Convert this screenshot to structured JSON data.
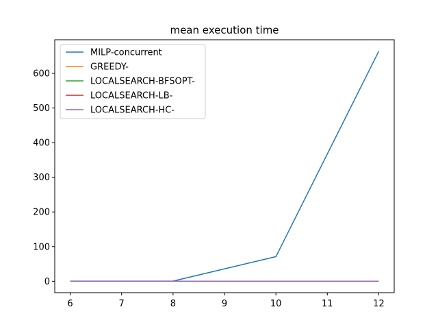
{
  "chart_data": {
    "type": "line",
    "title": "mean execution time",
    "xlabel": "",
    "ylabel": "",
    "x": [
      6,
      8,
      10,
      12
    ],
    "xticks": [
      "6",
      "7",
      "8",
      "9",
      "10",
      "11",
      "12"
    ],
    "yticks": [
      "0",
      "100",
      "200",
      "300",
      "400",
      "500",
      "600"
    ],
    "xlim": [
      5.7,
      12.3
    ],
    "ylim": [
      -33,
      697
    ],
    "grid": false,
    "legend_position": "top-left",
    "series": [
      {
        "name": "MILP-concurrent",
        "color": "#1f77b4",
        "values": [
          0.5,
          0.5,
          71,
          664
        ]
      },
      {
        "name": "GREEDY-",
        "color": "#ff7f0e",
        "values": [
          0.2,
          0.2,
          0.2,
          0.2
        ]
      },
      {
        "name": "LOCALSEARCH-BFSOPT-",
        "color": "#2ca02c",
        "values": [
          0.2,
          0.2,
          0.2,
          0.2
        ]
      },
      {
        "name": "LOCALSEARCH-LB-",
        "color": "#d62728",
        "values": [
          0.2,
          0.2,
          0.2,
          0.2
        ]
      },
      {
        "name": "LOCALSEARCH-HC-",
        "color": "#9467bd",
        "values": [
          0.2,
          0.2,
          0.2,
          0.2
        ]
      }
    ]
  }
}
